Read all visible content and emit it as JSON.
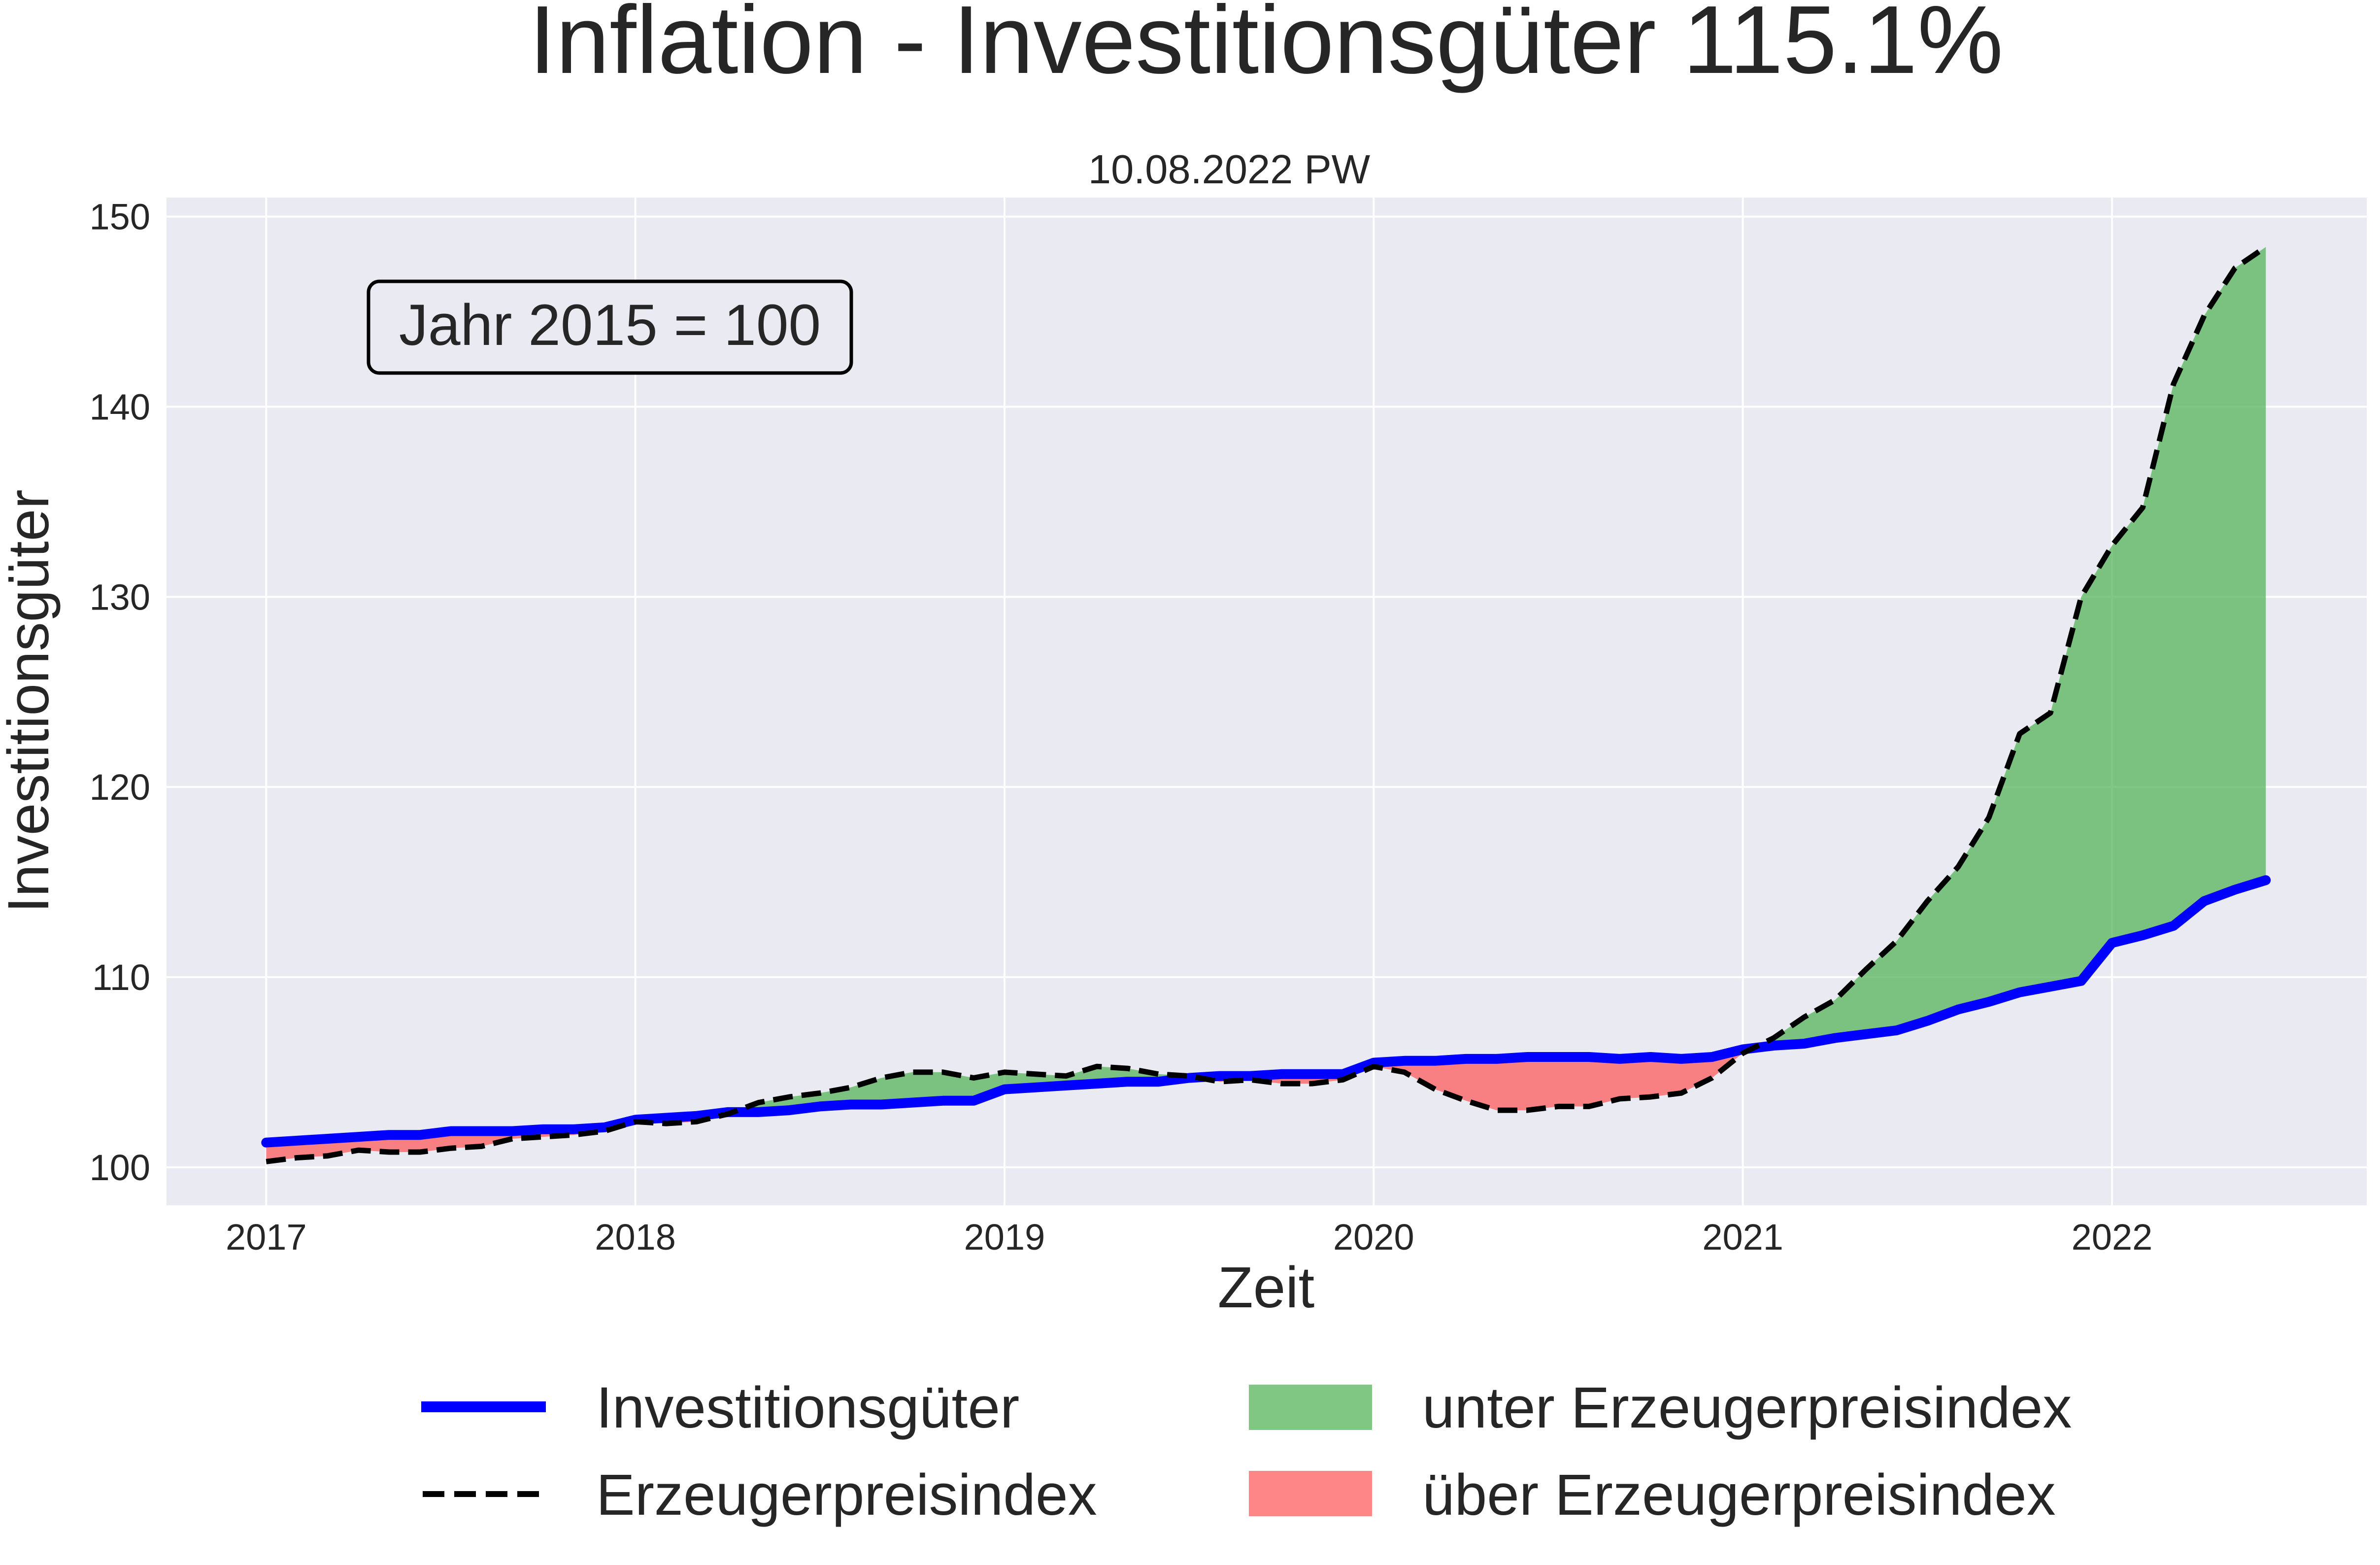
{
  "chart_data": {
    "type": "line",
    "title": "Inflation - Investitionsgüter 115.1%",
    "subtitle": "10.08.2022 PW",
    "xlabel": "Zeit",
    "ylabel": "Investitionsgüter",
    "annotation": "Jahr 2015 = 100",
    "xlim": [
      2016.73,
      2022.69
    ],
    "ylim": [
      98,
      151
    ],
    "x_ticks": [
      "2017",
      "2018",
      "2019",
      "2020",
      "2021",
      "2022"
    ],
    "y_ticks": [
      "100",
      "110",
      "120",
      "130",
      "140",
      "150"
    ],
    "grid": true,
    "legend_position": "below",
    "x": [
      "2017-01",
      "2017-02",
      "2017-03",
      "2017-04",
      "2017-05",
      "2017-06",
      "2017-07",
      "2017-08",
      "2017-09",
      "2017-10",
      "2017-11",
      "2017-12",
      "2018-01",
      "2018-02",
      "2018-03",
      "2018-04",
      "2018-05",
      "2018-06",
      "2018-07",
      "2018-08",
      "2018-09",
      "2018-10",
      "2018-11",
      "2018-12",
      "2019-01",
      "2019-02",
      "2019-03",
      "2019-04",
      "2019-05",
      "2019-06",
      "2019-07",
      "2019-08",
      "2019-09",
      "2019-10",
      "2019-11",
      "2019-12",
      "2020-01",
      "2020-02",
      "2020-03",
      "2020-04",
      "2020-05",
      "2020-06",
      "2020-07",
      "2020-08",
      "2020-09",
      "2020-10",
      "2020-11",
      "2020-12",
      "2021-01",
      "2021-02",
      "2021-03",
      "2021-04",
      "2021-05",
      "2021-06",
      "2021-07",
      "2021-08",
      "2021-09",
      "2021-10",
      "2021-11",
      "2021-12",
      "2022-01",
      "2022-02",
      "2022-03",
      "2022-04",
      "2022-05",
      "2022-06"
    ],
    "series": [
      {
        "name": "Investitionsgüter",
        "color": "#0000ff",
        "style": "solid",
        "values": [
          101.3,
          101.4,
          101.5,
          101.6,
          101.7,
          101.7,
          101.9,
          101.9,
          101.9,
          102.0,
          102.0,
          102.1,
          102.5,
          102.6,
          102.7,
          102.9,
          102.9,
          103.0,
          103.2,
          103.3,
          103.3,
          103.4,
          103.5,
          103.5,
          104.1,
          104.2,
          104.3,
          104.4,
          104.5,
          104.5,
          104.7,
          104.8,
          104.8,
          104.9,
          104.9,
          104.9,
          105.5,
          105.6,
          105.6,
          105.7,
          105.7,
          105.8,
          105.8,
          105.8,
          105.7,
          105.8,
          105.7,
          105.8,
          106.2,
          106.4,
          106.5,
          106.8,
          107.0,
          107.2,
          107.7,
          108.3,
          108.7,
          109.2,
          109.5,
          109.8,
          111.8,
          112.2,
          112.7,
          114.0,
          114.6,
          115.1
        ]
      },
      {
        "name": "Erzeugerpreisindex",
        "color": "#000000",
        "style": "dashed",
        "values": [
          100.3,
          100.5,
          100.6,
          100.9,
          100.8,
          100.8,
          101.0,
          101.1,
          101.5,
          101.6,
          101.7,
          101.9,
          102.4,
          102.3,
          102.4,
          102.8,
          103.4,
          103.7,
          103.9,
          104.2,
          104.7,
          105.0,
          105.0,
          104.7,
          105.0,
          104.9,
          104.8,
          105.3,
          105.2,
          104.9,
          104.8,
          104.5,
          104.6,
          104.4,
          104.4,
          104.6,
          105.3,
          105.0,
          104.1,
          103.5,
          103.0,
          103.0,
          103.2,
          103.2,
          103.6,
          103.7,
          103.9,
          104.7,
          106.0,
          106.8,
          107.9,
          108.8,
          110.4,
          111.9,
          114.0,
          115.8,
          118.4,
          122.8,
          123.9,
          130.0,
          132.7,
          134.7,
          141.2,
          144.8,
          147.3,
          148.4
        ]
      }
    ],
    "fill_legend": [
      {
        "label": "unter Erzeugerpreisindex",
        "color": "#4caf50"
      },
      {
        "label": "über Erzeugerpreisindex",
        "color": "#ff5252"
      }
    ]
  }
}
